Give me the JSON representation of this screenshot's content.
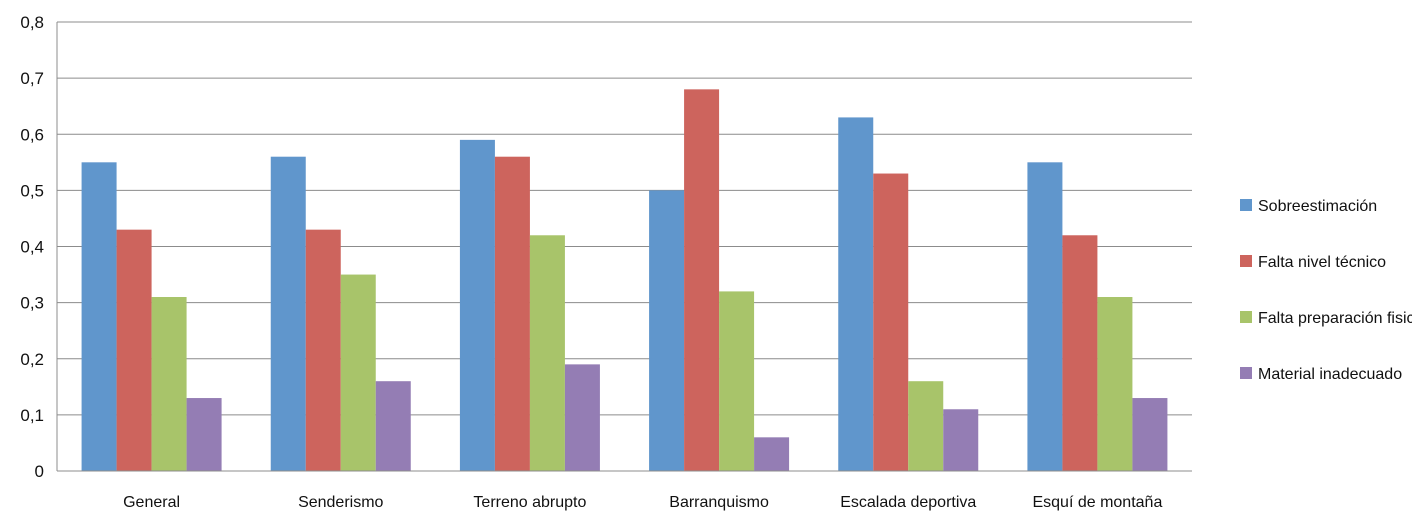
{
  "chart_data": {
    "type": "bar",
    "categories": [
      "General",
      "Senderismo",
      "Terreno abrupto",
      "Barranquismo",
      "Escalada deportiva",
      "Esquí de montaña"
    ],
    "series": [
      {
        "name": "Sobreestimación",
        "color": "#6096CC",
        "values": [
          0.55,
          0.56,
          0.59,
          0.5,
          0.63,
          0.55
        ]
      },
      {
        "name": "Falta nivel técnico",
        "color": "#CD645D",
        "values": [
          0.43,
          0.43,
          0.56,
          0.68,
          0.53,
          0.42
        ]
      },
      {
        "name": "Falta preparación fisica",
        "color": "#A8C46A",
        "values": [
          0.31,
          0.35,
          0.42,
          0.32,
          0.16,
          0.31
        ]
      },
      {
        "name": "Material inadecuado",
        "color": "#947DB4",
        "values": [
          0.13,
          0.16,
          0.19,
          0.06,
          0.11,
          0.13
        ]
      }
    ],
    "yticks": [
      "0",
      "0,1",
      "0,2",
      "0,3",
      "0,4",
      "0,5",
      "0,6",
      "0,7",
      "0,8"
    ],
    "ylim": [
      0,
      0.8
    ],
    "grid": true,
    "legend_position": "right",
    "title": "",
    "xlabel": "",
    "ylabel": ""
  }
}
